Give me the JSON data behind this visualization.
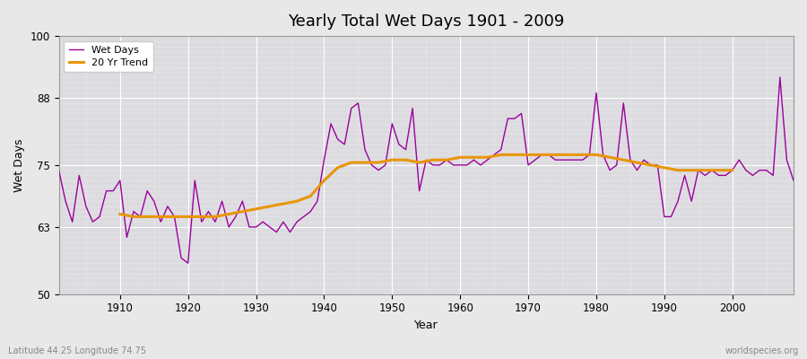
{
  "title": "Yearly Total Wet Days 1901 - 2009",
  "xlabel": "Year",
  "ylabel": "Wet Days",
  "subtitle_left": "Latitude 44.25 Longitude 74.75",
  "subtitle_right": "worldspecies.org",
  "ylim": [
    50,
    100
  ],
  "yticks": [
    50,
    63,
    75,
    88,
    100
  ],
  "legend_labels": [
    "Wet Days",
    "20 Yr Trend"
  ],
  "line_color": "#9b009b",
  "trend_color": "#e8960a",
  "bg_color": "#e8e8e8",
  "plot_bg_color": "#dcdce0",
  "years": [
    1901,
    1902,
    1903,
    1904,
    1905,
    1906,
    1907,
    1908,
    1909,
    1910,
    1911,
    1912,
    1913,
    1914,
    1915,
    1916,
    1917,
    1918,
    1919,
    1920,
    1921,
    1922,
    1923,
    1924,
    1925,
    1926,
    1927,
    1928,
    1929,
    1930,
    1931,
    1932,
    1933,
    1934,
    1935,
    1936,
    1937,
    1938,
    1939,
    1940,
    1941,
    1942,
    1943,
    1944,
    1945,
    1946,
    1947,
    1948,
    1949,
    1950,
    1951,
    1952,
    1953,
    1954,
    1955,
    1956,
    1957,
    1958,
    1959,
    1960,
    1961,
    1962,
    1963,
    1964,
    1965,
    1966,
    1967,
    1968,
    1969,
    1970,
    1971,
    1972,
    1973,
    1974,
    1975,
    1976,
    1977,
    1978,
    1979,
    1980,
    1981,
    1982,
    1983,
    1984,
    1985,
    1986,
    1987,
    1988,
    1989,
    1990,
    1991,
    1992,
    1993,
    1994,
    1995,
    1996,
    1997,
    1998,
    1999,
    2000,
    2001,
    2002,
    2003,
    2004,
    2005,
    2006,
    2007,
    2008,
    2009
  ],
  "wet_days": [
    74,
    68,
    64,
    73,
    67,
    64,
    65,
    70,
    70,
    72,
    61,
    66,
    65,
    70,
    68,
    64,
    67,
    65,
    57,
    56,
    72,
    64,
    66,
    64,
    68,
    63,
    65,
    68,
    63,
    63,
    64,
    63,
    62,
    64,
    62,
    64,
    65,
    66,
    68,
    76,
    83,
    80,
    79,
    86,
    87,
    78,
    75,
    74,
    75,
    83,
    79,
    78,
    86,
    70,
    76,
    75,
    75,
    76,
    75,
    75,
    75,
    76,
    75,
    76,
    77,
    78,
    84,
    84,
    85,
    75,
    76,
    77,
    77,
    76,
    76,
    76,
    76,
    76,
    77,
    89,
    77,
    74,
    75,
    87,
    76,
    74,
    76,
    75,
    75,
    65,
    65,
    68,
    73,
    68,
    74,
    73,
    74,
    73,
    73,
    74,
    76,
    74,
    73,
    74,
    74,
    73,
    92,
    76,
    72
  ],
  "trend_years": [
    1910,
    1912,
    1914,
    1916,
    1918,
    1920,
    1922,
    1924,
    1926,
    1928,
    1930,
    1932,
    1934,
    1936,
    1938,
    1940,
    1942,
    1944,
    1946,
    1948,
    1950,
    1952,
    1954,
    1956,
    1958,
    1960,
    1962,
    1964,
    1966,
    1968,
    1970,
    1972,
    1974,
    1976,
    1978,
    1980,
    1982,
    1984,
    1986,
    1988,
    1990,
    1992,
    1994,
    1996,
    1998,
    2000
  ],
  "trend_values": [
    65.5,
    65.0,
    65.0,
    65.0,
    65.0,
    65.0,
    65.0,
    65.0,
    65.5,
    66.0,
    66.5,
    67.0,
    67.5,
    68.0,
    69.0,
    72.0,
    74.5,
    75.5,
    75.5,
    75.5,
    76.0,
    76.0,
    75.5,
    76.0,
    76.0,
    76.5,
    76.5,
    76.5,
    77.0,
    77.0,
    77.0,
    77.0,
    77.0,
    77.0,
    77.0,
    77.0,
    76.5,
    76.0,
    75.5,
    75.0,
    74.5,
    74.0,
    74.0,
    74.0,
    74.0,
    74.0
  ]
}
